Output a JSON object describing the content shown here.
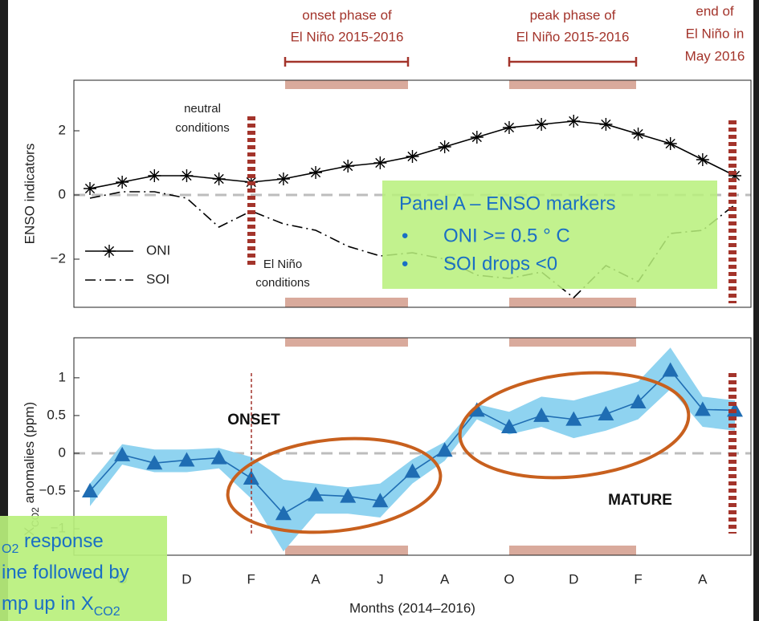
{
  "annotations": {
    "onset_phase": [
      "onset phase of",
      "El Niño 2015-2016"
    ],
    "peak_phase": [
      "peak phase of",
      "El Niño 2015-2016"
    ],
    "end": [
      "end of",
      "El Niño in",
      "May 2016"
    ],
    "neutral": [
      "neutral",
      "conditions"
    ],
    "el_nino": [
      "El Niño",
      "conditions"
    ],
    "onset": "ONSET",
    "mature": "MATURE"
  },
  "callouts": [
    {
      "title": "Panel A – ENSO markers",
      "bullet": "•",
      "items": [
        "ONI >= 0.5 ° C",
        "SOI drops <0"
      ]
    },
    {
      "lines": [
        [
          {
            "t": "O2",
            "sub": true
          },
          {
            "t": " response"
          }
        ],
        [
          {
            "t": "ine followed by"
          }
        ],
        [
          {
            "t": "mp up in X"
          },
          {
            "t": "CO2",
            "sub": true
          }
        ]
      ]
    }
  ],
  "chart_data": [
    {
      "type": "line",
      "ylabel": "ENSO indicators",
      "ylim": [
        -3.5,
        3.575
      ],
      "yticks": [
        {
          "value": -2,
          "label": "−2"
        },
        0,
        2
      ],
      "reference_line": 0,
      "legend": "lower left",
      "series": [
        {
          "name": "ONI",
          "color": "#000000",
          "marker": "star",
          "linestyle": "solid",
          "values": [
            0.2,
            0.4,
            0.6,
            0.6,
            0.5,
            0.4,
            0.5,
            0.7,
            0.9,
            1.0,
            1.2,
            1.5,
            1.8,
            2.1,
            2.2,
            2.3,
            2.2,
            1.9,
            1.6,
            1.1,
            0.6
          ]
        },
        {
          "name": "SOI",
          "color": "#000000",
          "linestyle": "dashdot",
          "values": [
            -0.1,
            0.1,
            0.1,
            -0.1,
            -1.0,
            -0.5,
            -0.9,
            -1.1,
            -1.6,
            -1.9,
            -1.8,
            -2.0,
            -2.5,
            -2.6,
            -2.4,
            -3.2,
            -2.2,
            -2.7,
            -1.2,
            -1.1,
            -0.3
          ]
        }
      ]
    },
    {
      "type": "line",
      "ylabel": [
        {
          "t": "X"
        },
        {
          "t": "CO2",
          "sub": true
        },
        {
          "t": " anomalies (ppm)"
        }
      ],
      "xlabel": "Months (2014–2016)",
      "categories": [
        null,
        "O",
        null,
        "D",
        null,
        "F",
        null,
        "A",
        null,
        "J",
        null,
        "A",
        null,
        "O",
        null,
        "D",
        null,
        "F",
        null,
        "A",
        null
      ],
      "ylim": [
        -1.35,
        1.53
      ],
      "yticks": [
        {
          "value": -1,
          "label": "−1"
        },
        {
          "value": -0.5,
          "label": "−0.5"
        },
        0,
        0.5,
        1
      ],
      "reference_line": 0,
      "series": [
        {
          "color": "#1f6db3",
          "band_color": "#8fd3f0",
          "marker": "triangle",
          "values": [
            -0.5,
            -0.02,
            -0.13,
            -0.09,
            -0.06,
            -0.33,
            -0.8,
            -0.55,
            -0.57,
            -0.63,
            -0.24,
            0.04,
            0.57,
            0.35,
            0.5,
            0.45,
            0.52,
            0.68,
            1.1,
            0.58,
            0.57
          ],
          "upper": [
            -0.4,
            0.12,
            0.05,
            0.05,
            0.07,
            -0.05,
            -0.35,
            -0.4,
            -0.45,
            -0.4,
            -0.08,
            0.15,
            0.65,
            0.55,
            0.75,
            0.7,
            0.82,
            0.95,
            1.4,
            0.75,
            0.7
          ],
          "lower": [
            -0.7,
            -0.15,
            -0.25,
            -0.25,
            -0.2,
            -0.6,
            -1.3,
            -0.8,
            -0.8,
            -0.85,
            -0.4,
            -0.1,
            0.45,
            0.25,
            0.35,
            0.2,
            0.3,
            0.45,
            0.85,
            0.35,
            0.3
          ]
        }
      ]
    }
  ]
}
